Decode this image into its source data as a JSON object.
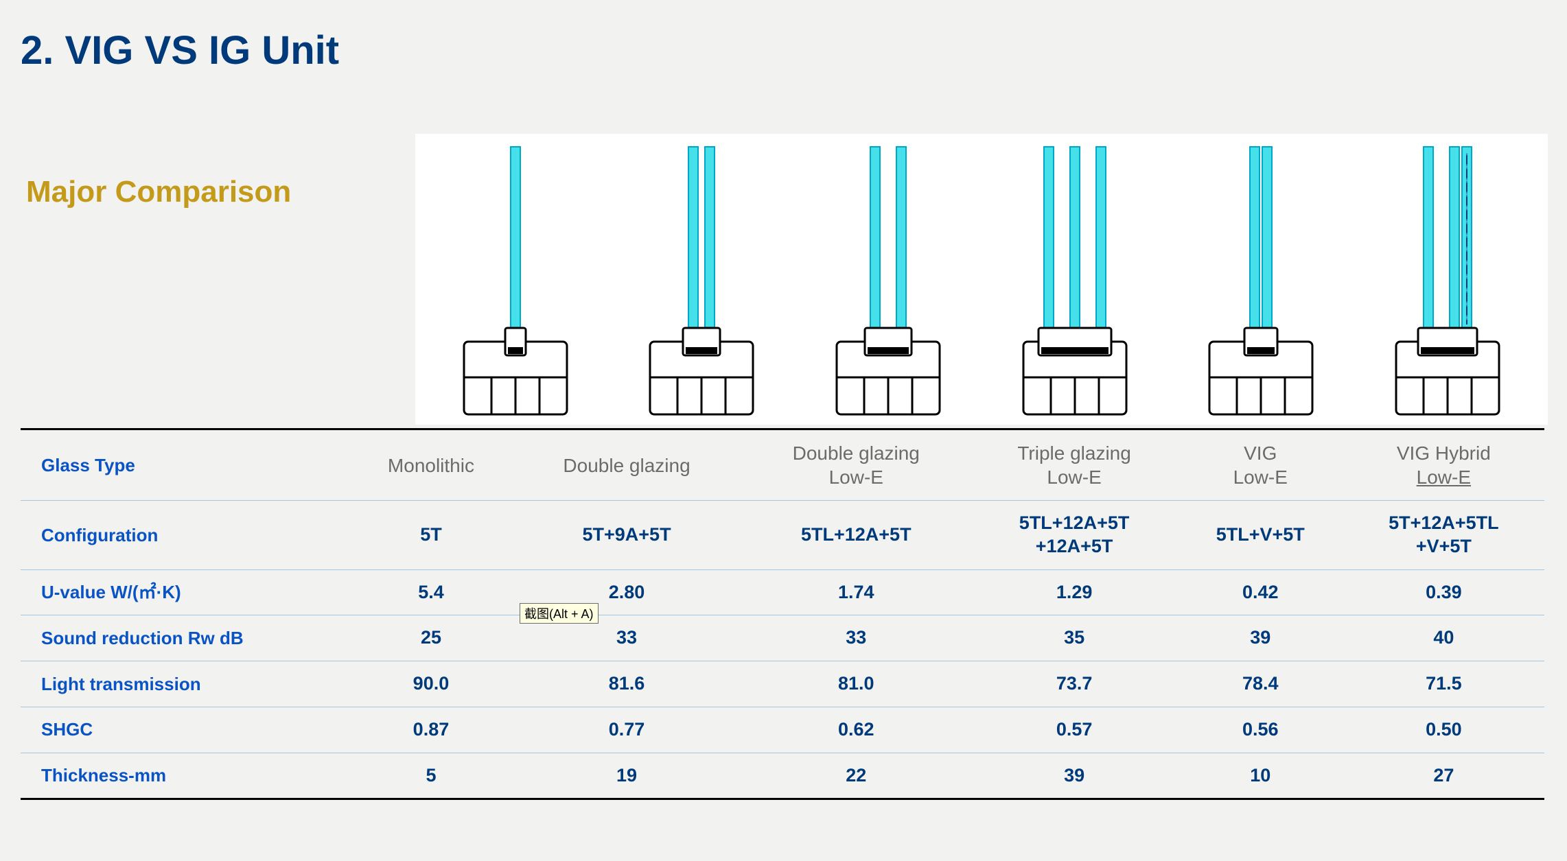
{
  "title": "2. VIG VS IG Unit",
  "subtitle": "Major Comparison",
  "tooltip_text": "截图(Alt + A)",
  "colors": {
    "page_bg": "#f2f2f0",
    "title_color": "#003a7a",
    "subtitle_color": "#c49a1a",
    "header_label_color": "#0a53c4",
    "header_value_color": "#6b6b6b",
    "cell_value_color": "#003a7a",
    "row_divider": "#a7c7de",
    "table_border": "#000000",
    "pane_fill": "#45e0e9",
    "pane_stroke": "#00a7c7",
    "diagram_bg": "#ffffff",
    "tooltip_bg": "#ffffe1"
  },
  "diagrams": [
    {
      "panes": 1,
      "gaps": [],
      "dotted_last": false
    },
    {
      "panes": 2,
      "gaps": [
        "narrow"
      ],
      "dotted_last": false
    },
    {
      "panes": 2,
      "gaps": [
        "wide"
      ],
      "dotted_last": false
    },
    {
      "panes": 3,
      "gaps": [
        "wide",
        "wide"
      ],
      "dotted_last": false
    },
    {
      "panes": 2,
      "gaps": [
        "none"
      ],
      "dotted_last": false
    },
    {
      "panes": 3,
      "gaps": [
        "wide",
        "none"
      ],
      "dotted_last": true
    }
  ],
  "table": {
    "header_label": "Glass Type",
    "columns": [
      {
        "line1": "Monolithic",
        "line2": ""
      },
      {
        "line1": "Double glazing",
        "line2": ""
      },
      {
        "line1": "Double glazing",
        "line2": "Low-E"
      },
      {
        "line1": "Triple glazing",
        "line2": "Low-E"
      },
      {
        "line1": "VIG",
        "line2": "Low-E"
      },
      {
        "line1": "VIG Hybrid",
        "line2": "Low-E",
        "underline_line2": true
      }
    ],
    "rows": [
      {
        "label": "Configuration",
        "cells": [
          {
            "v": "5T"
          },
          {
            "v": "5T+9A+5T"
          },
          {
            "v": "5TL+12A+5T"
          },
          {
            "v1": "5TL+12A+5T",
            "v2": "+12A+5T"
          },
          {
            "v": "5TL+V+5T"
          },
          {
            "v1": "5T+12A+5TL",
            "v2": "+V+5T"
          }
        ]
      },
      {
        "label": "U-value W/(㎡·K)",
        "cells": [
          {
            "v": "5.4"
          },
          {
            "v": "2.80"
          },
          {
            "v": "1.74"
          },
          {
            "v": "1.29"
          },
          {
            "v": "0.42"
          },
          {
            "v": "0.39"
          }
        ]
      },
      {
        "label": "Sound reduction Rw dB",
        "cells": [
          {
            "v": "25"
          },
          {
            "v": "33"
          },
          {
            "v": "33"
          },
          {
            "v": "35"
          },
          {
            "v": "39"
          },
          {
            "v": "40"
          }
        ]
      },
      {
        "label": "Light transmission",
        "cells": [
          {
            "v": "90.0"
          },
          {
            "v": "81.6"
          },
          {
            "v": "81.0"
          },
          {
            "v": "73.7"
          },
          {
            "v": "78.4"
          },
          {
            "v": "71.5"
          }
        ]
      },
      {
        "label": "SHGC",
        "cells": [
          {
            "v": "0.87"
          },
          {
            "v": "0.77"
          },
          {
            "v": "0.62"
          },
          {
            "v": "0.57"
          },
          {
            "v": "0.56"
          },
          {
            "v": "0.50"
          }
        ]
      },
      {
        "label": "Thickness-mm",
        "cells": [
          {
            "v": "5"
          },
          {
            "v": "19"
          },
          {
            "v": "22"
          },
          {
            "v": "39"
          },
          {
            "v": "10"
          },
          {
            "v": "27"
          }
        ]
      }
    ]
  }
}
